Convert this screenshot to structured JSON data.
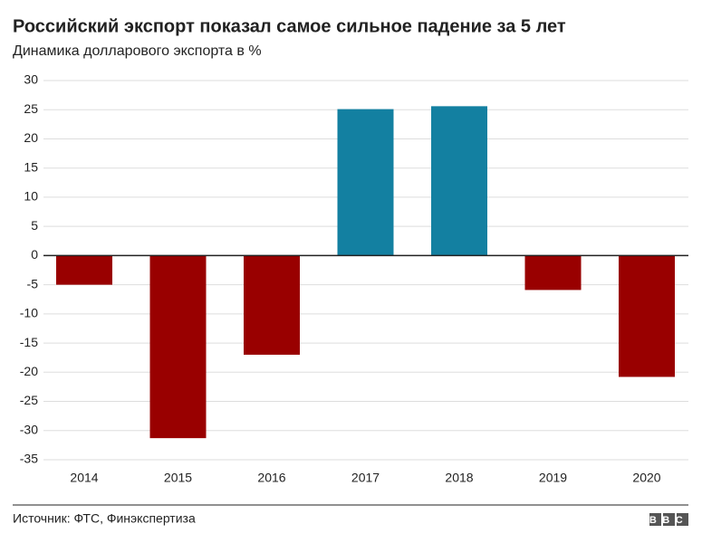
{
  "chart_data": {
    "type": "bar",
    "title": "Российский экспорт показал самое сильное падение за 5 лет",
    "subtitle": "Динамика долларового экспорта в %",
    "categories": [
      "2014",
      "2015",
      "2016",
      "2017",
      "2018",
      "2019",
      "2020"
    ],
    "values": [
      -5,
      -31.3,
      -17,
      25.1,
      25.6,
      -5.9,
      -20.8
    ],
    "colors": [
      "#990000",
      "#990000",
      "#990000",
      "#1380a1",
      "#1380a1",
      "#990000",
      "#990000"
    ],
    "ylim": [
      -35,
      30
    ],
    "yticks": [
      30,
      25,
      20,
      15,
      10,
      5,
      0,
      -5,
      -10,
      -15,
      -20,
      -25,
      -30,
      -35
    ],
    "grid": true,
    "source": "Источник: ФТС, Финэкспертиза",
    "logo": "BBC"
  }
}
